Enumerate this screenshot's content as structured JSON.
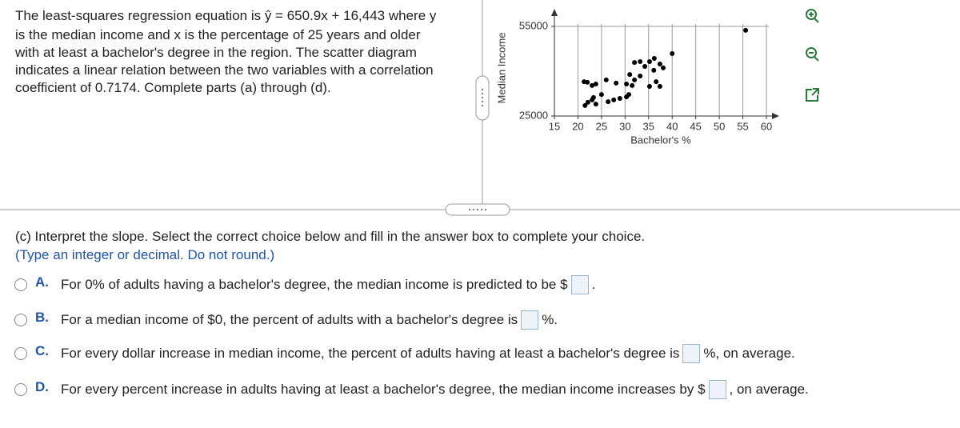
{
  "problem": {
    "lines": [
      "The least-squares regression equation is ŷ = 650.9x + 16,443 where y",
      "is the median income and x is the percentage of 25 years and older",
      "with at least a bachelor's degree in the region. The scatter diagram",
      "indicates a linear relation between the two variables with a correlation",
      "coefficient of 0.7174. Complete parts (a) through (d)."
    ]
  },
  "chart_data": {
    "type": "scatter",
    "x_label": "Bachelor's %",
    "y_label": "Median Income",
    "x": [
      55.6,
      40.0,
      36.2,
      35.2,
      33.2,
      32.0,
      37.4,
      34.2,
      38.1,
      36.1,
      31.0,
      33.2,
      32.0,
      36.6,
      35.2,
      37.4,
      30.3,
      31.5,
      21.3,
      22.0,
      23.0,
      23.8,
      26.0,
      28.1,
      23.0,
      22.1,
      23.3,
      21.5,
      23.8,
      26.4,
      27.6,
      28.9,
      30.3,
      30.8,
      25.0
    ],
    "values": [
      53700,
      45900,
      44300,
      43200,
      43200,
      42900,
      42400,
      41600,
      41100,
      40300,
      38900,
      38400,
      37100,
      36500,
      34900,
      34900,
      35700,
      35200,
      36500,
      36300,
      35200,
      35700,
      37100,
      36000,
      30400,
      29600,
      31200,
      28500,
      29000,
      29800,
      30400,
      30900,
      31400,
      32200,
      32200
    ],
    "color": "#000000",
    "xlim": [
      15,
      60
    ],
    "ylim": [
      25000,
      55000
    ],
    "xticks": [
      15,
      20,
      25,
      30,
      35,
      40,
      45,
      50,
      55,
      60
    ],
    "yticks": [
      25000,
      55000
    ],
    "grid": true
  },
  "question": {
    "title": "(c) Interpret the slope. Select the correct choice below and fill in the answer box to complete your choice.",
    "instruction": "(Type an integer or decimal. Do not round.)"
  },
  "options": [
    {
      "letter": "A.",
      "text": "For 0% of adults having a bachelor's degree, the median income is predicted to be $",
      "suffix": "."
    },
    {
      "letter": "B.",
      "text": "For a median income of $0, the percent of adults with a bachelor's degree is",
      "suffix": "%."
    },
    {
      "letter": "C.",
      "text": "For every dollar increase in median income, the percent of adults having at least a bachelor's degree is",
      "suffix": "%, on average."
    },
    {
      "letter": "D.",
      "text": "For every percent increase in adults having at least a bachelor's degree, the median income increases by $",
      "suffix": ", on average."
    }
  ]
}
